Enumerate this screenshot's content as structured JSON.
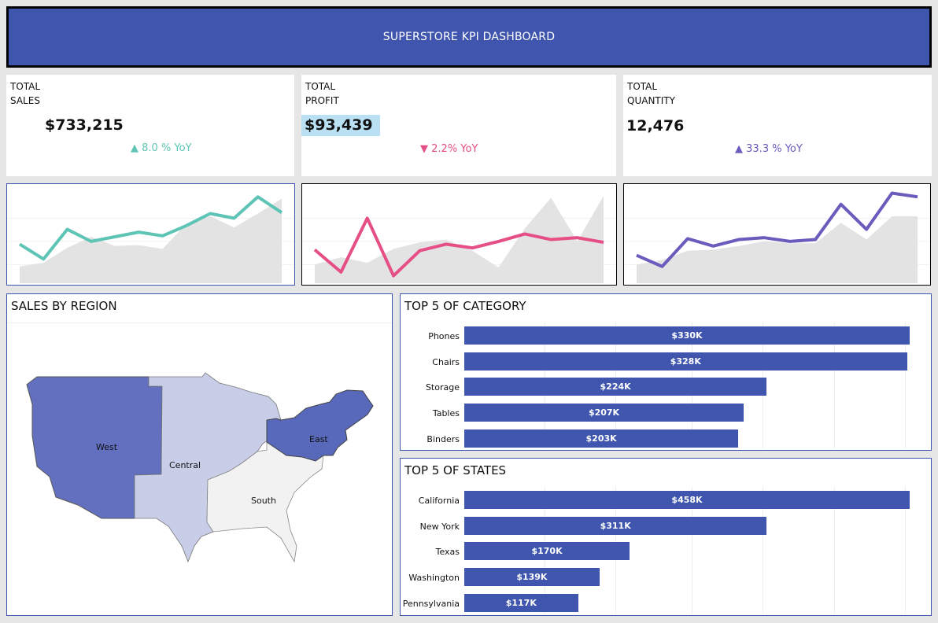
{
  "header": {
    "title": "SUPERSTORE KPI DASHBOARD"
  },
  "kpis": [
    {
      "label1": "TOTAL",
      "label2": "SALES",
      "value": "$733,215",
      "yoy": "8.0 % YoY",
      "direction": "up",
      "color": "#5ec4b5"
    },
    {
      "label1": "TOTAL",
      "label2": "PROFIT",
      "value": "$93,439",
      "yoy": "2.2% YoY",
      "direction": "down",
      "color": "#e64e86"
    },
    {
      "label1": "TOTAL",
      "label2": "QUANTITY",
      "value": "12,476",
      "yoy": "33.3 % YoY",
      "direction": "up",
      "color": "#6a5bbd"
    }
  ],
  "colors": {
    "accent": "#3f55ae",
    "area": "#e3e3e3",
    "west": "#6270bf",
    "central": "#c8cde8",
    "south": "#f2f2f2",
    "east": "#5868bb"
  },
  "chart_data": [
    {
      "type": "line",
      "title": "",
      "series": [
        {
          "values": [
            42,
            26,
            58,
            45,
            50,
            55,
            51,
            62,
            75,
            70,
            93,
            76
          ]
        },
        {
          "values": [
            18,
            22,
            38,
            50,
            40,
            41,
            37,
            64,
            72,
            60,
            75,
            91
          ]
        }
      ]
    },
    {
      "type": "line",
      "title": "",
      "series": [
        {
          "values": [
            36,
            12,
            70,
            8,
            35,
            42,
            38,
            45,
            53,
            47,
            49,
            44
          ]
        },
        {
          "values": [
            20,
            28,
            22,
            37,
            44,
            47,
            35,
            17,
            59,
            92,
            45,
            94
          ]
        }
      ]
    },
    {
      "type": "line",
      "title": "",
      "series": [
        {
          "values": [
            30,
            18,
            48,
            40,
            47,
            49,
            45,
            47,
            85,
            58,
            97,
            93
          ]
        },
        {
          "values": [
            20,
            25,
            35,
            36,
            40,
            45,
            43,
            43,
            65,
            47,
            72,
            72
          ]
        }
      ]
    },
    {
      "type": "bar",
      "orientation": "horizontal",
      "title": "TOP 5 OF CATEGORY",
      "categories": [
        "Phones",
        "Chairs",
        "Storage",
        "Tables",
        "Binders"
      ],
      "values": [
        330,
        328,
        224,
        207,
        203
      ],
      "labels": [
        "$330K",
        "$328K",
        "$224K",
        "$207K",
        "$203K"
      ]
    },
    {
      "type": "bar",
      "orientation": "horizontal",
      "title": "TOP 5 OF STATES",
      "categories": [
        "California",
        "New York",
        "Texas",
        "Washington",
        "Pennsylvania"
      ],
      "values": [
        458,
        311,
        170,
        139,
        117
      ],
      "labels": [
        "$458K",
        "$311K",
        "$170K",
        "$139K",
        "$117K"
      ]
    }
  ],
  "map": {
    "title": "SALES BY REGION",
    "regions": {
      "west": "West",
      "central": "Central",
      "south": "South",
      "east": "East"
    }
  }
}
